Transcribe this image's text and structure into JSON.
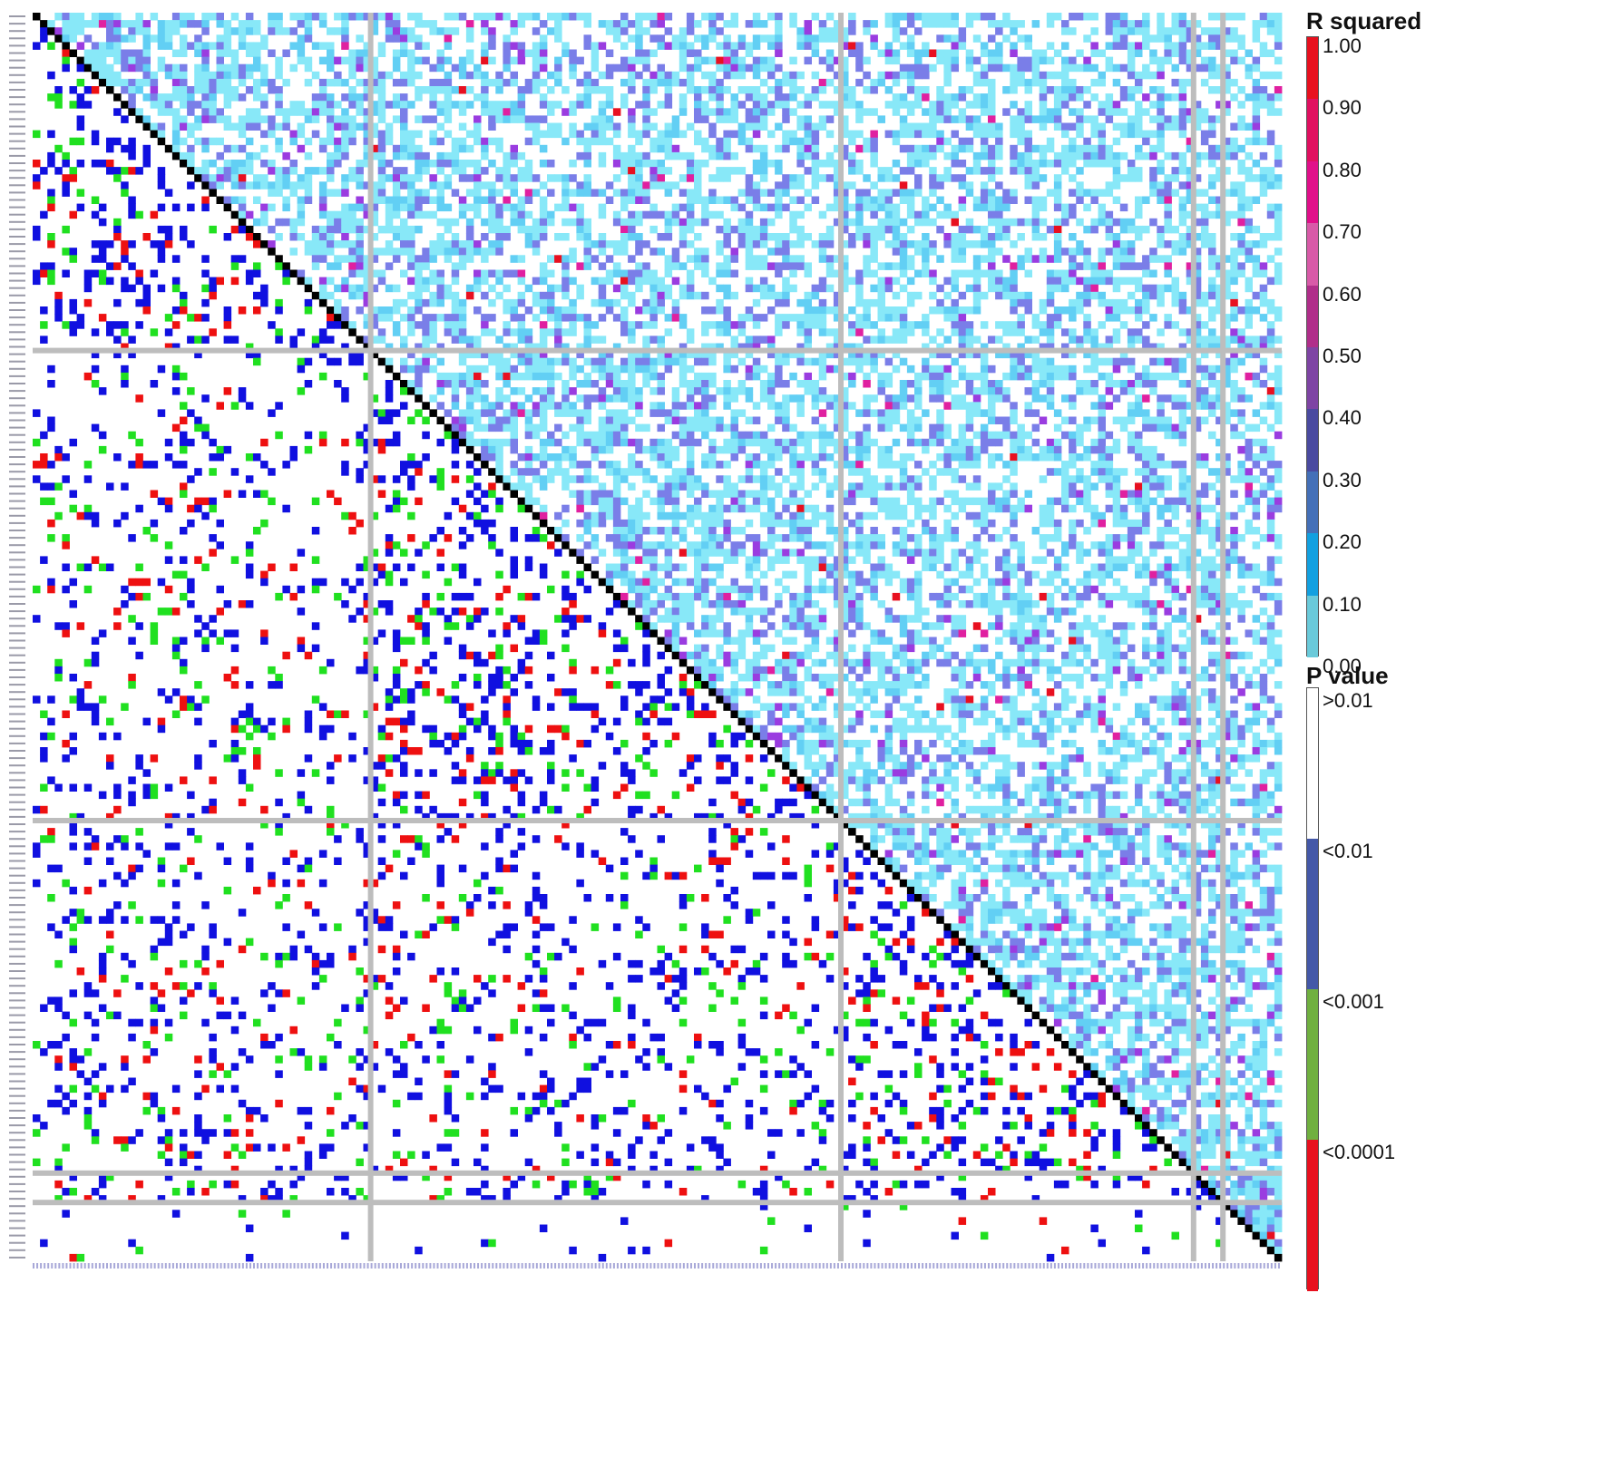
{
  "chart_data": {
    "type": "heatmap",
    "description_axes": "Square pairwise matrix of ~170 variants along both axes; diagonal in black; upper triangle colored by R squared, lower triangle colored by P value; grey lines separate blocks",
    "row_labels_visible": false,
    "block_boundaries_index": [
      46,
      110,
      158,
      162
    ],
    "legend_r_squared": {
      "title": "R squared",
      "ticks": [
        "1.00",
        "0.90",
        "0.80",
        "0.70",
        "0.60",
        "0.50",
        "0.40",
        "0.30",
        "0.20",
        "0.10",
        "0.00"
      ],
      "colors": [
        "#e8101e",
        "#e01060",
        "#e0108a",
        "#d85aa8",
        "#b02e8a",
        "#7e44a4",
        "#4a4aa0",
        "#4470b8",
        "#12a0e0",
        "#6acada",
        "#ffffff"
      ]
    },
    "legend_p_value": {
      "title": "P value",
      "ticks": [
        ">0.01",
        "<0.01",
        "<0.001",
        "<0.0001"
      ],
      "colors": [
        "#ffffff",
        "#4458a8",
        "#70b040",
        "#e8101e"
      ]
    },
    "cell_colors": {
      "r2_low": "#88e8f8",
      "r2_midlow": "#62cff4",
      "r2_mid": "#7a7ee8",
      "r2_high": "#9a3ce0",
      "r2_top": "#e020a0",
      "r2_max": "#e81020",
      "p_blue": "#1010e0",
      "p_green": "#20e020",
      "p_red": "#ee1010",
      "diagonal": "#000000",
      "grid": "#bdbdbd"
    }
  }
}
